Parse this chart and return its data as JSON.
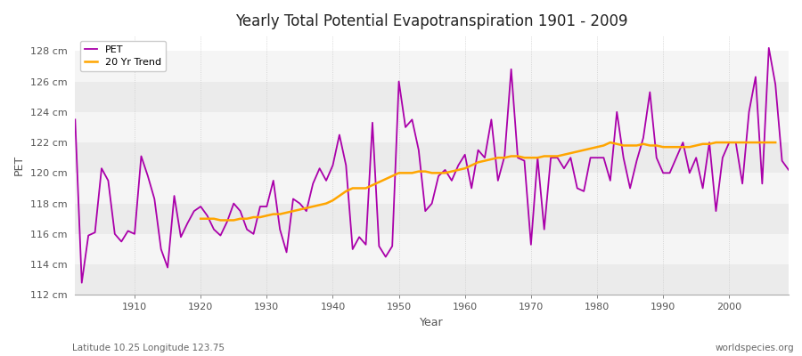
{
  "title": "Yearly Total Potential Evapotranspiration 1901 - 2009",
  "xlabel": "Year",
  "ylabel": "PET",
  "subtitle_left": "Latitude 10.25 Longitude 123.75",
  "subtitle_right": "worldspecies.org",
  "pet_color": "#AA00AA",
  "trend_color": "#FFA500",
  "fig_background": "#FFFFFF",
  "plot_background_light": "#F0F0F0",
  "plot_background_dark": "#E0E0E0",
  "ylim": [
    112,
    129
  ],
  "xlim": [
    1901,
    2009
  ],
  "yticks": [
    112,
    114,
    116,
    118,
    120,
    122,
    124,
    126,
    128
  ],
  "years": [
    1901,
    1902,
    1903,
    1904,
    1905,
    1906,
    1907,
    1908,
    1909,
    1910,
    1911,
    1912,
    1913,
    1914,
    1915,
    1916,
    1917,
    1918,
    1919,
    1920,
    1921,
    1922,
    1923,
    1924,
    1925,
    1926,
    1927,
    1928,
    1929,
    1930,
    1931,
    1932,
    1933,
    1934,
    1935,
    1936,
    1937,
    1938,
    1939,
    1940,
    1941,
    1942,
    1943,
    1944,
    1945,
    1946,
    1947,
    1948,
    1949,
    1950,
    1951,
    1952,
    1953,
    1954,
    1955,
    1956,
    1957,
    1958,
    1959,
    1960,
    1961,
    1962,
    1963,
    1964,
    1965,
    1966,
    1967,
    1968,
    1969,
    1970,
    1971,
    1972,
    1973,
    1974,
    1975,
    1976,
    1977,
    1978,
    1979,
    1980,
    1981,
    1982,
    1983,
    1984,
    1985,
    1986,
    1987,
    1988,
    1989,
    1990,
    1991,
    1992,
    1993,
    1994,
    1995,
    1996,
    1997,
    1998,
    1999,
    2000,
    2001,
    2002,
    2003,
    2004,
    2005,
    2006,
    2007,
    2008,
    2009
  ],
  "pet_values": [
    123.5,
    112.8,
    115.9,
    116.1,
    120.3,
    119.5,
    116.0,
    115.5,
    116.2,
    116.0,
    121.1,
    119.8,
    118.3,
    115.0,
    113.8,
    118.5,
    115.8,
    116.7,
    117.5,
    117.8,
    117.2,
    116.3,
    115.9,
    116.8,
    118.0,
    117.5,
    116.3,
    116.0,
    117.8,
    117.8,
    119.5,
    116.3,
    114.8,
    118.3,
    118.0,
    117.5,
    119.3,
    120.3,
    119.5,
    120.5,
    122.5,
    120.5,
    115.0,
    115.8,
    115.3,
    123.3,
    115.2,
    114.5,
    115.2,
    126.0,
    123.0,
    123.5,
    121.5,
    117.5,
    118.0,
    119.8,
    120.2,
    119.5,
    120.5,
    121.2,
    119.0,
    121.5,
    121.0,
    123.5,
    119.5,
    121.1,
    126.8,
    121.0,
    120.8,
    115.3,
    121.0,
    116.3,
    121.0,
    121.0,
    120.3,
    121.0,
    119.0,
    118.8,
    121.0,
    121.0,
    121.0,
    119.5,
    124.0,
    121.0,
    119.0,
    120.8,
    122.3,
    125.3,
    121.0,
    120.0,
    120.0,
    121.0,
    122.0,
    120.0,
    121.0,
    119.0,
    122.0,
    117.5,
    121.0,
    122.0,
    122.0,
    119.3,
    124.0,
    126.3,
    119.3,
    128.2,
    125.8,
    120.8,
    120.2
  ],
  "trend_values": [
    null,
    null,
    null,
    null,
    null,
    null,
    null,
    null,
    null,
    null,
    null,
    null,
    null,
    null,
    null,
    null,
    null,
    null,
    null,
    117.0,
    117.0,
    117.0,
    116.9,
    116.9,
    116.9,
    117.0,
    117.0,
    117.1,
    117.1,
    117.2,
    117.3,
    117.3,
    117.4,
    117.5,
    117.6,
    117.7,
    117.8,
    117.9,
    118.0,
    118.2,
    118.5,
    118.8,
    119.0,
    119.0,
    119.0,
    119.2,
    119.4,
    119.6,
    119.8,
    120.0,
    120.0,
    120.0,
    120.1,
    120.1,
    120.0,
    120.0,
    120.0,
    120.1,
    120.2,
    120.3,
    120.5,
    120.7,
    120.8,
    120.9,
    121.0,
    121.0,
    121.1,
    121.1,
    121.0,
    121.0,
    121.0,
    121.1,
    121.1,
    121.1,
    121.2,
    121.3,
    121.4,
    121.5,
    121.6,
    121.7,
    121.8,
    122.0,
    121.9,
    121.8,
    121.8,
    121.8,
    121.9,
    121.8,
    121.8,
    121.7,
    121.7,
    121.7,
    121.7,
    121.7,
    121.8,
    121.9,
    121.9,
    122.0,
    122.0,
    122.0,
    122.0,
    122.0,
    122.0,
    122.0,
    122.0,
    122.0,
    122.0,
    null
  ]
}
